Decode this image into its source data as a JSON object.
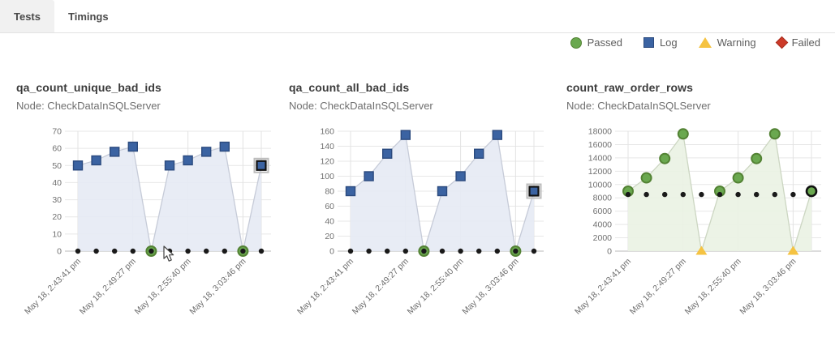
{
  "tabs": [
    {
      "id": "tests",
      "label": "Tests",
      "active": true
    },
    {
      "id": "timings",
      "label": "Timings",
      "active": false
    }
  ],
  "legend": {
    "items": [
      {
        "label": "Passed",
        "shape": "circle",
        "color": "#6aa84f",
        "stroke": "#538234"
      },
      {
        "label": "Log",
        "shape": "square",
        "color": "#3b63a2",
        "stroke": "#2b4a7e"
      },
      {
        "label": "Warning",
        "shape": "triangle",
        "color": "#f5c342",
        "stroke": "#f5c342"
      },
      {
        "label": "Failed",
        "shape": "diamond",
        "color": "#cc3a28",
        "stroke": "#a82e1f"
      }
    ]
  },
  "status_colors": {
    "passed": "#6aa84f",
    "passed_stroke": "#538234",
    "log": "#3b63a2",
    "log_stroke": "#2b4a7e",
    "warning": "#f5c342",
    "failed": "#cc3a28",
    "threshold_dot": "#1a1a1a",
    "selected_stroke": "#111111",
    "selected_halo": "#bdbdbd"
  },
  "chart_data": [
    {
      "type": "area",
      "title": "qa_count_unique_bad_ids",
      "node": "Node: CheckDataInSQLServer",
      "x_tick_labels": [
        "May 18, 2:43:41 pm",
        "May 18, 2:49:27 pm",
        "May 18, 2:55:40 pm",
        "May 18, 3:03:46 pm"
      ],
      "x_tick_indices": [
        0,
        3,
        6,
        9
      ],
      "n_points": 11,
      "ylim": [
        0,
        70
      ],
      "ytick_step": 10,
      "yticks": [
        0,
        10,
        20,
        30,
        40,
        50,
        60,
        70
      ],
      "series": [
        {
          "name": "value",
          "values": [
            50,
            53,
            58,
            61,
            0,
            50,
            53,
            58,
            61,
            0,
            50
          ],
          "statuses": [
            "log",
            "log",
            "log",
            "log",
            "passed",
            "log",
            "log",
            "log",
            "log",
            "passed",
            "log"
          ],
          "selected_index": 10
        },
        {
          "name": "threshold",
          "values": [
            0,
            0,
            0,
            0,
            0,
            0,
            0,
            0,
            0,
            0,
            0
          ]
        }
      ],
      "area_fill": "#e6eaf4",
      "area_line": "#c6cbd8",
      "grid": "on",
      "legend_position": "none"
    },
    {
      "type": "area",
      "title": "qa_count_all_bad_ids",
      "node": "Node: CheckDataInSQLServer",
      "x_tick_labels": [
        "May 18, 2:43:41 pm",
        "May 18, 2:49:27 pm",
        "May 18, 2:55:40 pm",
        "May 18, 3:03:46 pm"
      ],
      "x_tick_indices": [
        0,
        3,
        6,
        9
      ],
      "n_points": 11,
      "ylim": [
        0,
        160
      ],
      "ytick_step": 20,
      "yticks": [
        0,
        20,
        40,
        60,
        80,
        100,
        120,
        140,
        160
      ],
      "series": [
        {
          "name": "value",
          "values": [
            80,
            100,
            130,
            155,
            0,
            80,
            100,
            130,
            155,
            0,
            80
          ],
          "statuses": [
            "log",
            "log",
            "log",
            "log",
            "passed",
            "log",
            "log",
            "log",
            "log",
            "passed",
            "log"
          ],
          "selected_index": 10
        },
        {
          "name": "threshold",
          "values": [
            0,
            0,
            0,
            0,
            0,
            0,
            0,
            0,
            0,
            0,
            0
          ]
        }
      ],
      "area_fill": "#e6eaf4",
      "area_line": "#c6cbd8",
      "grid": "on",
      "legend_position": "none"
    },
    {
      "type": "area",
      "title": "count_raw_order_rows",
      "node": "Node: CheckDataInSQLServer",
      "x_tick_labels": [
        "May 18, 2:43:41 pm",
        "May 18, 2:49:27 pm",
        "May 18, 2:55:40 pm",
        "May 18, 3:03:46 pm"
      ],
      "x_tick_indices": [
        0,
        3,
        6,
        9
      ],
      "n_points": 11,
      "ylim": [
        0,
        18000
      ],
      "ytick_step": 2000,
      "yticks": [
        0,
        2000,
        4000,
        6000,
        8000,
        10000,
        12000,
        14000,
        16000,
        18000
      ],
      "series": [
        {
          "name": "value",
          "values": [
            9000,
            11000,
            13900,
            17600,
            0,
            9000,
            11000,
            13900,
            17600,
            0,
            9000
          ],
          "statuses": [
            "passed",
            "passed",
            "passed",
            "passed",
            "warning",
            "passed",
            "passed",
            "passed",
            "passed",
            "warning",
            "passed"
          ],
          "selected_index": 10
        },
        {
          "name": "threshold",
          "values": [
            8500,
            8500,
            8500,
            8500,
            8500,
            8500,
            8500,
            8500,
            8500,
            8500,
            8500
          ]
        }
      ],
      "area_fill": "#eaf2e3",
      "area_line": "#ccd6c2",
      "grid": "on",
      "legend_position": "none"
    }
  ],
  "chart_lefts": [
    20,
    356,
    698
  ]
}
